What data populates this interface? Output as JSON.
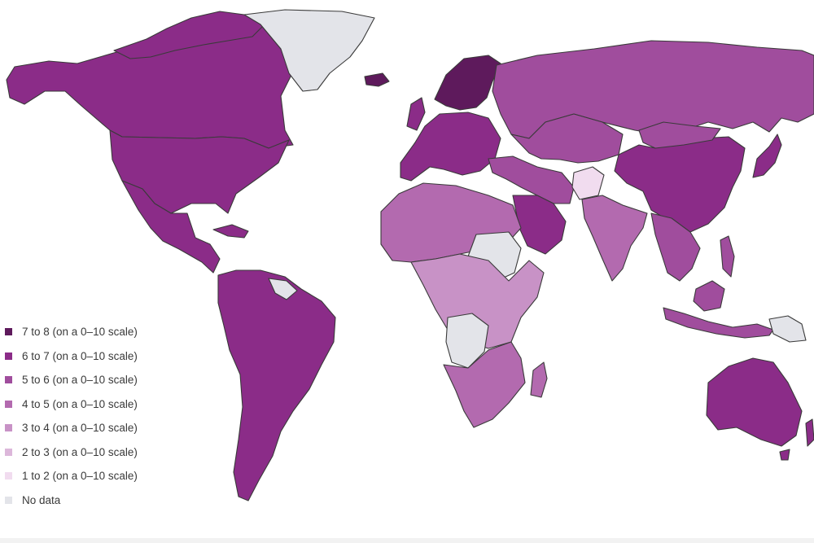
{
  "map": {
    "colors": {
      "7 to 8": "#5e1a5c",
      "6 to 7": "#8b2c88",
      "5 to 6": "#a04d9d",
      "4 to 5": "#b36aaf",
      "3 to 4": "#c892c6",
      "2 to 3": "#dcb7da",
      "1 to 2": "#f1dcef",
      "No data": "#e3e4e9"
    },
    "regions": [
      {
        "name": "Canada",
        "bin": "6 to 7"
      },
      {
        "name": "United States",
        "bin": "6 to 7"
      },
      {
        "name": "Mexico",
        "bin": "6 to 7"
      },
      {
        "name": "Greenland",
        "bin": "No data"
      },
      {
        "name": "South America",
        "bin": "6 to 7"
      },
      {
        "name": "Guianas",
        "bin": "No data"
      },
      {
        "name": "Western Europe",
        "bin": "6 to 7"
      },
      {
        "name": "Nordic countries",
        "bin": "7 to 8"
      },
      {
        "name": "Russia",
        "bin": "5 to 6"
      },
      {
        "name": "China",
        "bin": "6 to 7"
      },
      {
        "name": "Central Asia",
        "bin": "5 to 6"
      },
      {
        "name": "Afghanistan",
        "bin": "1 to 2"
      },
      {
        "name": "India",
        "bin": "4 to 5"
      },
      {
        "name": "Saudi Arabia",
        "bin": "6 to 7"
      },
      {
        "name": "North Africa",
        "bin": "4 to 5"
      },
      {
        "name": "Sahel",
        "bin": "No data"
      },
      {
        "name": "Central Africa",
        "bin": "3 to 4"
      },
      {
        "name": "DR Congo",
        "bin": "No data"
      },
      {
        "name": "Southern Africa",
        "bin": "4 to 5"
      },
      {
        "name": "Southeast Asia",
        "bin": "5 to 6"
      },
      {
        "name": "Australia",
        "bin": "6 to 7"
      }
    ]
  },
  "legend": {
    "items": [
      {
        "label": "7 to 8 (on a 0–10 scale)",
        "color": "#5e1a5c"
      },
      {
        "label": "6 to 7 (on a 0–10 scale)",
        "color": "#8b2c88"
      },
      {
        "label": "5 to 6 (on a 0–10 scale)",
        "color": "#a04d9d"
      },
      {
        "label": "4 to 5 (on a 0–10 scale)",
        "color": "#b36aaf"
      },
      {
        "label": "3 to 4 (on a 0–10 scale)",
        "color": "#c892c6"
      },
      {
        "label": "2 to 3 (on a 0–10 scale)",
        "color": "#dcb7da"
      },
      {
        "label": "1 to 2 (on a 0–10 scale)",
        "color": "#f1dcef"
      },
      {
        "label": "No data",
        "color": "#e3e4e9"
      }
    ]
  }
}
